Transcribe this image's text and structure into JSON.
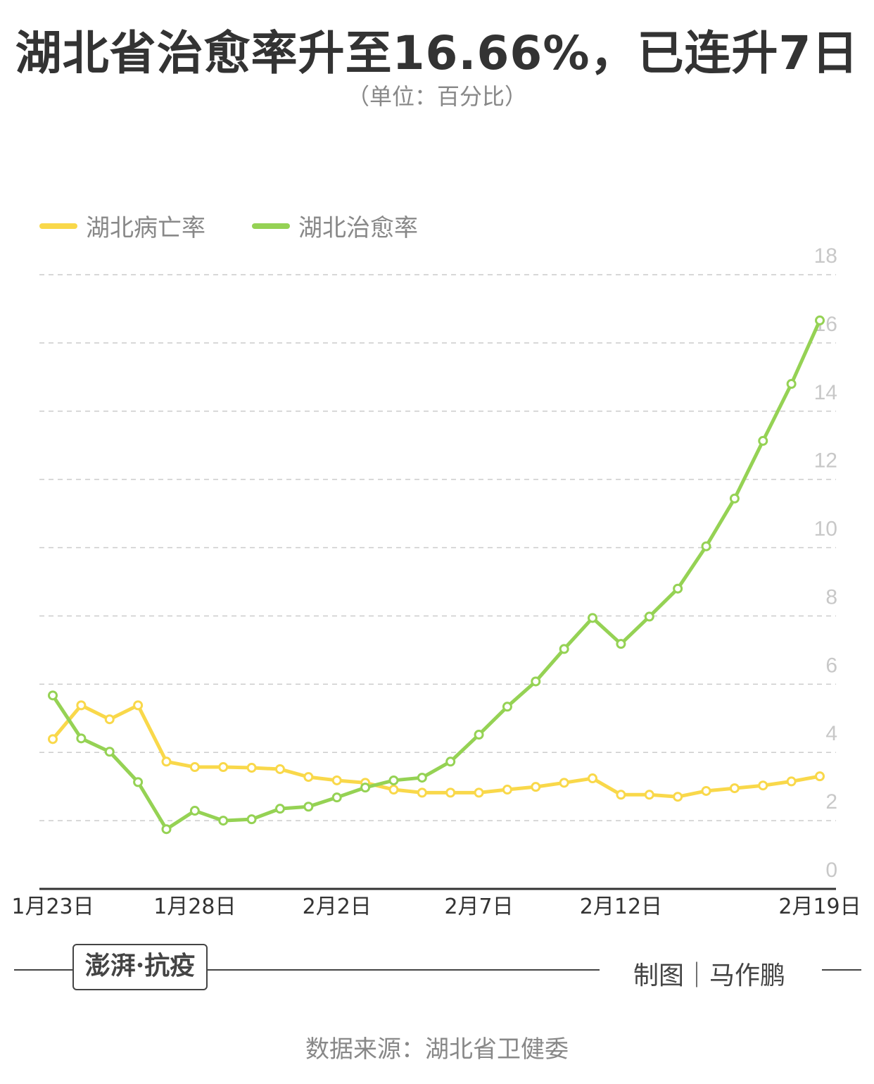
{
  "title": "湖北省治愈率升至16.66%，已连升7日",
  "subtitle": "（单位：百分比）",
  "footer": {
    "logo_text": "澎湃·抗疫",
    "credit": "制图｜马作鹏",
    "source": "数据来源：湖北省卫健委"
  },
  "colors": {
    "death_rate": "#F9D84A",
    "cure_rate": "#95D254",
    "grid": "#cccccc",
    "axis": "#333333"
  },
  "chart_data": {
    "type": "line",
    "title": "湖北省治愈率升至16.66%，已连升7日",
    "ylabel": "（单位：百分比）",
    "ylim": [
      0,
      18
    ],
    "yticks": [
      0,
      2,
      4,
      6,
      8,
      10,
      12,
      14,
      16,
      18
    ],
    "grid": true,
    "legend_position": "top-left",
    "x": [
      "1月23日",
      "1月24日",
      "1月25日",
      "1月26日",
      "1月27日",
      "1月28日",
      "1月29日",
      "1月30日",
      "1月31日",
      "2月1日",
      "2月2日",
      "2月3日",
      "2月4日",
      "2月5日",
      "2月6日",
      "2月7日",
      "2月8日",
      "2月9日",
      "2月10日",
      "2月11日",
      "2月12日",
      "2月13日",
      "2月14日",
      "2月15日",
      "2月16日",
      "2月17日",
      "2月18日",
      "2月19日"
    ],
    "xtick_labels": [
      "1月23日",
      "1月28日",
      "2月2日",
      "2月7日",
      "2月12日",
      "2月19日"
    ],
    "series": [
      {
        "name": "湖北病亡率",
        "color": "#F9D84A",
        "values": [
          4.39,
          5.38,
          4.97,
          5.38,
          3.73,
          3.57,
          3.57,
          3.55,
          3.51,
          3.28,
          3.18,
          3.11,
          2.91,
          2.82,
          2.82,
          2.82,
          2.91,
          2.99,
          3.11,
          3.24,
          2.76,
          2.76,
          2.7,
          2.87,
          2.95,
          3.03,
          3.15,
          3.3
        ]
      },
      {
        "name": "湖北治愈率",
        "color": "#95D254",
        "values": [
          5.67,
          4.41,
          4.02,
          3.13,
          1.75,
          2.29,
          2.0,
          2.04,
          2.35,
          2.41,
          2.68,
          2.97,
          3.18,
          3.26,
          3.73,
          4.52,
          5.34,
          6.08,
          7.03,
          7.94,
          7.18,
          7.98,
          8.8,
          10.04,
          11.44,
          13.13,
          14.8,
          16.66
        ]
      }
    ]
  }
}
